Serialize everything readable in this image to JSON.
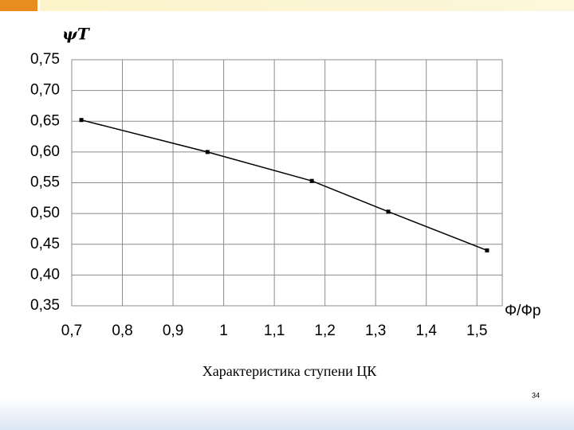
{
  "chart_data": {
    "type": "line",
    "y_label": "ψT",
    "x_label": "Φ/Фр",
    "x": [
      0.719,
      0.968,
      1.174,
      1.325,
      1.52
    ],
    "series": [
      {
        "color": "#000000",
        "values": [
          0.652,
          0.6,
          0.553,
          0.503,
          0.44
        ]
      }
    ],
    "xlim": [
      0.7,
      1.55
    ],
    "xticks": [
      {
        "value": 0.7,
        "label": "0,7"
      },
      {
        "value": 0.8,
        "label": "0,8"
      },
      {
        "value": 0.9,
        "label": "0,9"
      },
      1,
      {
        "value": 1.1,
        "label": "1,1"
      },
      {
        "value": 1.2,
        "label": "1,2"
      },
      {
        "value": 1.3,
        "label": "1,3"
      },
      {
        "value": 1.4,
        "label": "1,4"
      },
      {
        "value": 1.5,
        "label": "1,5"
      }
    ],
    "ylim": [
      0.35,
      0.75
    ],
    "yticks": [
      {
        "value": 0.35,
        "label": "0,35"
      },
      {
        "value": 0.4,
        "label": "0,40"
      },
      {
        "value": 0.45,
        "label": "0,45"
      },
      {
        "value": 0.5,
        "label": "0,50"
      },
      {
        "value": 0.55,
        "label": "0,55"
      },
      {
        "value": 0.6,
        "label": "0,60"
      },
      {
        "value": 0.65,
        "label": "0,65"
      },
      {
        "value": 0.7,
        "label": "0,70"
      },
      {
        "value": 0.75,
        "label": "0,75"
      }
    ],
    "grid": true
  },
  "caption": "Характеристика ступени ЦК",
  "page_number": "34"
}
